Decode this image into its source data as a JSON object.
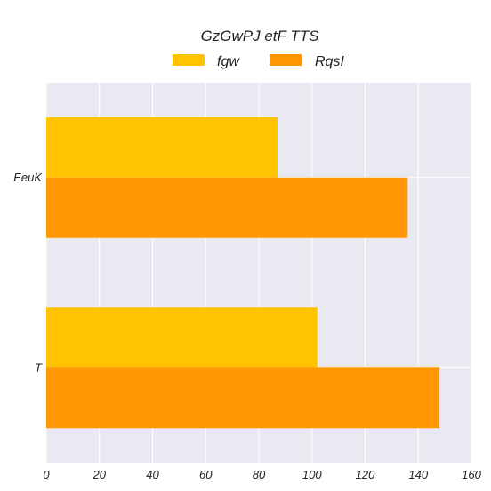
{
  "chart_data": {
    "type": "bar",
    "orientation": "horizontal",
    "title": "GzGwPJ etF TTS",
    "xlabel": "",
    "ylabel": "",
    "categories": [
      "EeuK",
      "T"
    ],
    "series": [
      {
        "name": "fgw",
        "color": "#FFC300",
        "values": [
          87,
          102
        ]
      },
      {
        "name": "RqsI",
        "color": "#FF9800",
        "values": [
          136,
          148
        ]
      }
    ],
    "xlim": [
      0,
      160
    ],
    "xticks": [
      0,
      20,
      40,
      60,
      80,
      100,
      120,
      140,
      160
    ],
    "grid": true,
    "legend_position": "top-center"
  },
  "colors": {
    "plot_background": "#E9E9F2",
    "grid": "#FFFFFF"
  }
}
